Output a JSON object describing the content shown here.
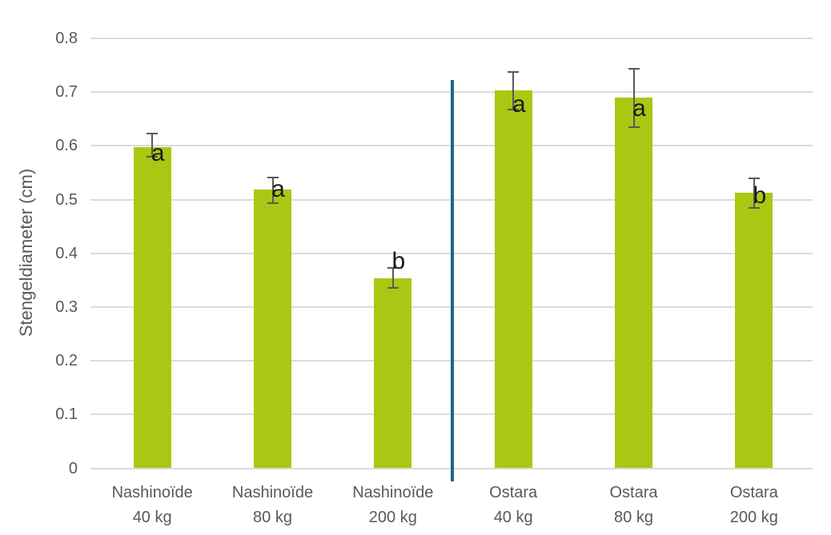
{
  "chart_data": {
    "type": "bar",
    "title": "",
    "xlabel": "",
    "ylabel": "Stengeldiameter (cm)",
    "ylim": [
      0,
      0.8
    ],
    "yticks": [
      "0",
      "0.1",
      "0.2",
      "0.3",
      "0.4",
      "0.5",
      "0.6",
      "0.7",
      "0.8"
    ],
    "grid": true,
    "legend": false,
    "categories": [
      "Nashinoïde 40 kg",
      "Nashinoïde 80 kg",
      "Nashinoïde 200 kg",
      "Ostara 40 kg",
      "Ostara 80 kg",
      "Ostara 200 kg"
    ],
    "category_lines": [
      [
        "Nashinoïde",
        "40 kg"
      ],
      [
        "Nashinoïde",
        "80 kg"
      ],
      [
        "Nashinoïde",
        "200 kg"
      ],
      [
        "Ostara",
        "40 kg"
      ],
      [
        "Ostara",
        "80 kg"
      ],
      [
        "Ostara",
        "200 kg"
      ]
    ],
    "series": [
      {
        "name": "Stengeldiameter",
        "values": [
          0.597,
          0.518,
          0.354,
          0.703,
          0.69,
          0.512
        ],
        "error_upper": [
          0.623,
          0.541,
          0.373,
          0.737,
          0.743,
          0.54
        ],
        "error_lower": [
          0.58,
          0.494,
          0.335,
          0.668,
          0.634,
          0.485
        ]
      }
    ],
    "sig_letters": [
      "a",
      "a",
      "b",
      "a",
      "a",
      "b"
    ],
    "sig_letter_y": [
      0.585,
      0.519,
      0.384,
      0.676,
      0.669,
      0.506
    ],
    "group_separator": {
      "between_categories": [
        2,
        3
      ]
    },
    "colors": {
      "bar": "#A9C814",
      "gridline": "#DBDBDB",
      "axis_text": "#595959",
      "error_bar": "#595959",
      "sig_letter": "#1A1A1A",
      "separator": "#20687E"
    }
  }
}
